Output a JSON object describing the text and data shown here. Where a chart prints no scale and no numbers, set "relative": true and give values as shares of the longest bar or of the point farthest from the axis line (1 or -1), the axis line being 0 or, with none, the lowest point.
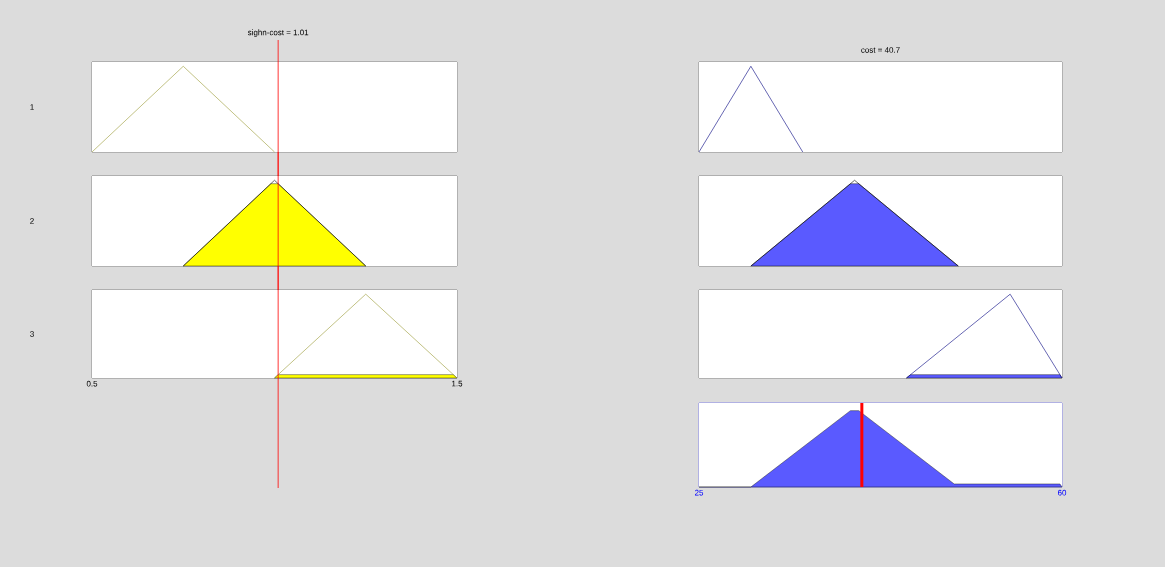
{
  "chart_data": [
    {
      "type": "line",
      "title": "sighn-cost = 1.01",
      "ylabel": "1",
      "relative": true,
      "xlim": [
        0.5,
        1.5
      ],
      "tick_labels": false,
      "ref_lines": [
        {
          "axis": "x",
          "value": 1.01,
          "color": "#ff0000"
        }
      ],
      "series": [
        {
          "color": "#999933",
          "x": [
            0.5,
            0.75,
            1.0
          ],
          "values": [
            0,
            1,
            0
          ]
        }
      ]
    },
    {
      "type": "area",
      "ylabel": "2",
      "relative": true,
      "xlim": [
        0.5,
        1.5
      ],
      "tick_labels": false,
      "ref_lines": [
        {
          "axis": "x",
          "value": 1.01,
          "color": "#ff0000"
        }
      ],
      "series": [
        {
          "color": "#ffff00",
          "x": [
            0.75,
            0.99,
            1.01,
            1.25
          ],
          "values": [
            0,
            0.96,
            0.96,
            0
          ]
        },
        {
          "type": "line",
          "color": "#000000",
          "x": [
            0.75,
            1.0,
            1.25
          ],
          "values": [
            0,
            1,
            0
          ]
        }
      ]
    },
    {
      "type": "area",
      "ylabel": "3",
      "relative": true,
      "xlim": [
        0.5,
        1.5
      ],
      "xticks": [
        0.5,
        1.5
      ],
      "tick_labels": "x",
      "ref_lines": [
        {
          "axis": "x",
          "value": 1.01,
          "color": "#ff0000"
        }
      ],
      "series": [
        {
          "color": "#ffff00",
          "x": [
            1.0,
            1.01,
            1.49,
            1.5
          ],
          "values": [
            0,
            0.04,
            0.04,
            0
          ]
        },
        {
          "type": "line",
          "color": "#999933",
          "x": [
            1.0,
            1.25,
            1.5
          ],
          "values": [
            0,
            1,
            0
          ]
        }
      ]
    },
    {
      "type": "line",
      "title": "cost = 40.7",
      "relative": true,
      "xlim": [
        25,
        60
      ],
      "tick_labels": false,
      "series": [
        {
          "color": "#000080",
          "x": [
            25,
            30,
            35
          ],
          "values": [
            0,
            1,
            0
          ]
        }
      ]
    },
    {
      "type": "area",
      "relative": true,
      "xlim": [
        25,
        60
      ],
      "tick_labels": false,
      "series": [
        {
          "color": "#5a5aff",
          "x": [
            30,
            39.6,
            40.4,
            50
          ],
          "values": [
            0,
            0.96,
            0.96,
            0
          ]
        },
        {
          "type": "line",
          "color": "#000000",
          "x": [
            30,
            40,
            50
          ],
          "values": [
            0,
            1,
            0
          ]
        }
      ]
    },
    {
      "type": "area",
      "relative": true,
      "xlim": [
        25,
        60
      ],
      "tick_labels": false,
      "series": [
        {
          "color": "#5a5aff",
          "x": [
            45,
            45.4,
            59.8,
            60
          ],
          "values": [
            0,
            0.04,
            0.04,
            0
          ]
        },
        {
          "type": "line",
          "color": "#000080",
          "x": [
            45,
            55,
            60
          ],
          "values": [
            0,
            1,
            0
          ]
        }
      ]
    },
    {
      "type": "area",
      "relative": true,
      "xlim": [
        25,
        60
      ],
      "xticks": [
        25,
        60
      ],
      "tick_labels": "x",
      "ref_lines": [
        {
          "axis": "x",
          "value": 40.7,
          "color": "#ff0000"
        }
      ],
      "series": [
        {
          "color": "#5a5aff",
          "x": [
            25,
            30,
            39.6,
            40.4,
            49.6,
            59.8,
            60
          ],
          "values": [
            0,
            0,
            1,
            1,
            0.04,
            0.04,
            0
          ]
        }
      ]
    }
  ]
}
